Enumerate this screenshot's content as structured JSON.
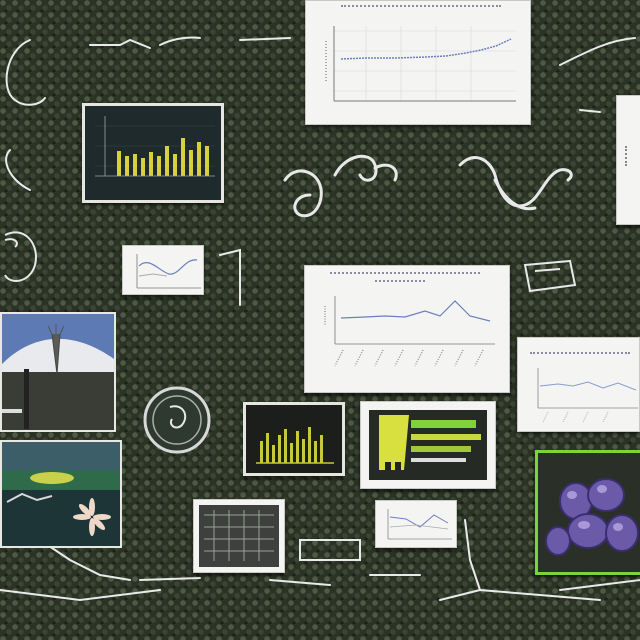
{
  "colors": {
    "background": "#2b3325",
    "card_white": "#f4f4f2",
    "chart_line": "#6b7fc0",
    "bar_yellow": "#d6d23a",
    "accent_green": "#7fd23a",
    "purple_blobs": "#6a5aa8"
  },
  "board": {
    "cards": [
      {
        "name": "top-line-chart-card",
        "kind": "line-chart-printout"
      },
      {
        "name": "yellow-bar-chart-panel",
        "kind": "dark-bar-chart"
      },
      {
        "name": "small-line-chart-card",
        "kind": "line-chart-printout"
      },
      {
        "name": "wide-line-chart-card",
        "kind": "line-chart-printout"
      },
      {
        "name": "right-line-chart-card",
        "kind": "line-chart-printout"
      },
      {
        "name": "landscape-photo",
        "kind": "photo"
      },
      {
        "name": "field-photo",
        "kind": "photo"
      },
      {
        "name": "round-dial-badge",
        "kind": "decoration"
      },
      {
        "name": "yellow-grass-panel",
        "kind": "dark-bar-chart"
      },
      {
        "name": "yellow-green-panel",
        "kind": "abstract-panel"
      },
      {
        "name": "purple-blob-photo",
        "kind": "photo"
      },
      {
        "name": "grid-screenshot-card",
        "kind": "screenshot"
      },
      {
        "name": "mini-chart-card",
        "kind": "line-chart-printout"
      }
    ],
    "icons": [
      "swirl-icon",
      "wave-icon",
      "ring-icon",
      "loop-icon",
      "scribble-icon"
    ]
  }
}
